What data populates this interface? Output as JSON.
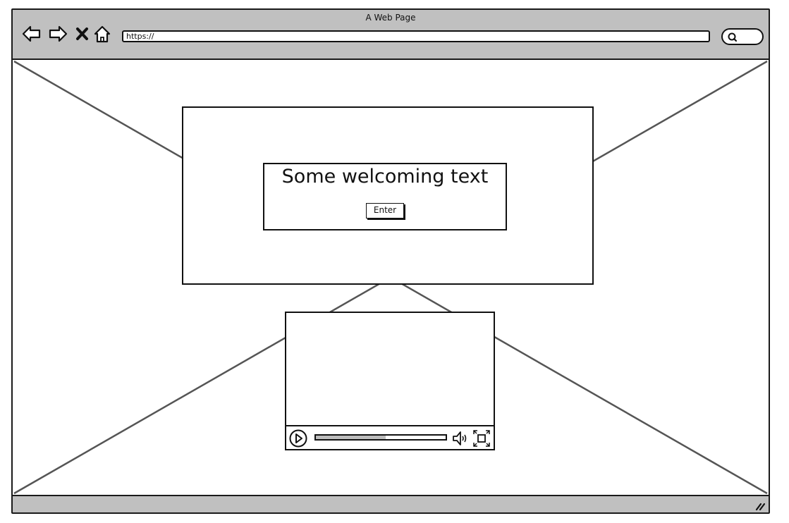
{
  "window": {
    "title": "A Web Page"
  },
  "toolbar": {
    "back_icon": "back-arrow-icon",
    "forward_icon": "forward-arrow-icon",
    "stop_icon": "close-x-icon",
    "home_icon": "home-icon",
    "url": "https://",
    "search_icon": "search-icon"
  },
  "hero": {
    "welcome_text": "Some welcoming text",
    "enter_label": "Enter"
  },
  "video_player": {
    "play_icon": "play-icon",
    "progress": 0.54,
    "volume_icon": "volume-icon",
    "fullscreen_icon": "fullscreen-icon"
  },
  "colors": {
    "chrome": "#c0c0c0",
    "stroke": "#111111",
    "placeholder_lines": "#555555",
    "seek_fill": "#bdbdbd"
  }
}
